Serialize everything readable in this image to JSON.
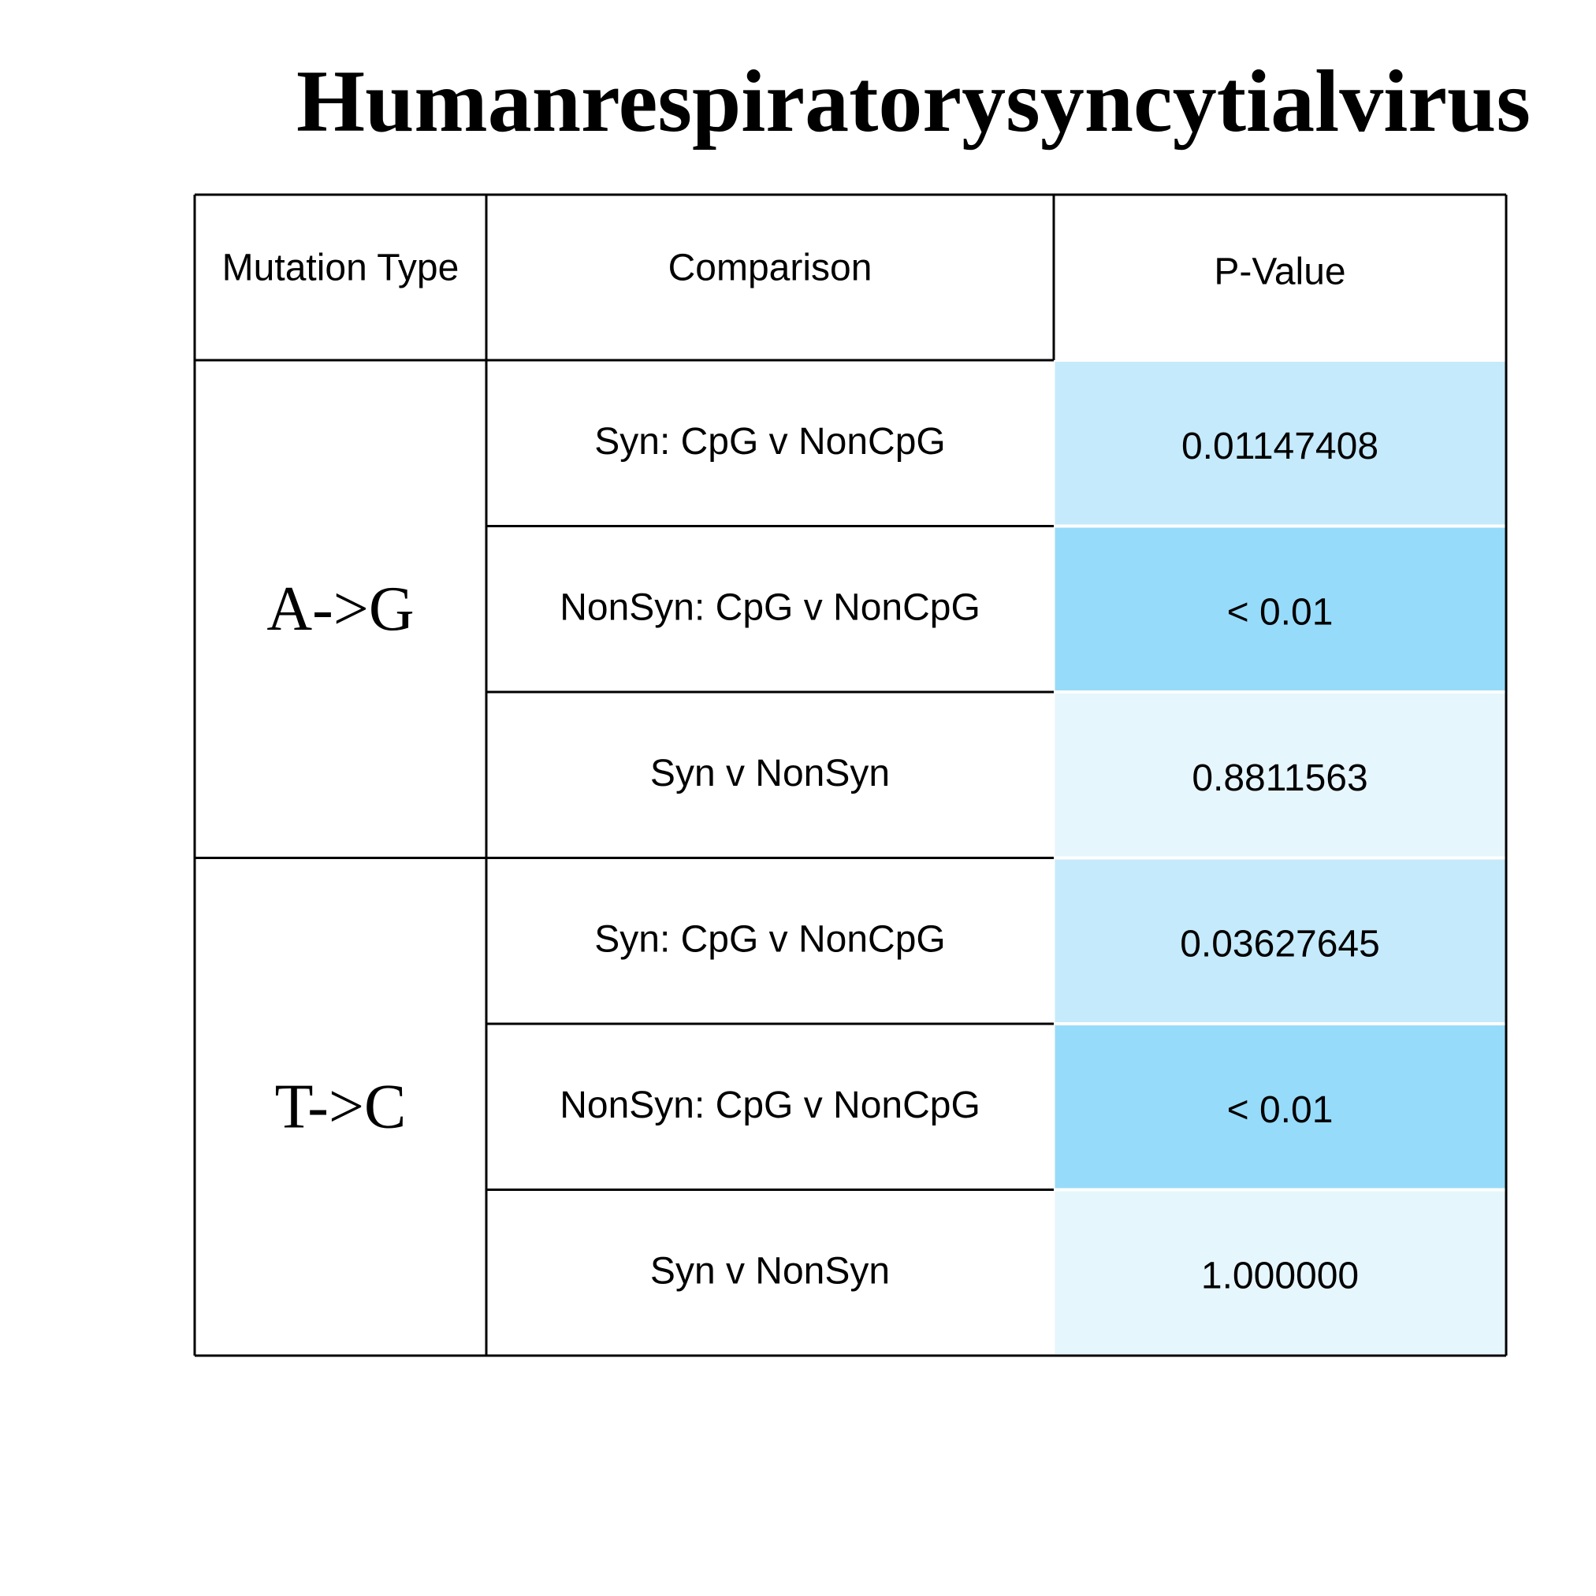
{
  "chart_data": {
    "type": "table",
    "title": "Humanrespiratorysyncytialvirus",
    "columns": [
      "Mutation Type",
      "Comparison",
      "P-Value"
    ],
    "groups": [
      {
        "mutation_type": "A->G",
        "rows": [
          {
            "comparison": "Syn: CpG v NonCpG",
            "p_value": "0.01147408",
            "fill": "#c5eafb"
          },
          {
            "comparison": "NonSyn: CpG v NonCpG",
            "p_value": "< 0.01",
            "fill": "#97dbfa"
          },
          {
            "comparison": "Syn v NonSyn",
            "p_value": "0.8811563",
            "fill": "#e6f6fd"
          }
        ]
      },
      {
        "mutation_type": "T->C",
        "rows": [
          {
            "comparison": "Syn: CpG v NonCpG",
            "p_value": "0.03627645",
            "fill": "#c5eafb"
          },
          {
            "comparison": "NonSyn: CpG v NonCpG",
            "p_value": "< 0.01",
            "fill": "#97dbfa"
          },
          {
            "comparison": "Syn v NonSyn",
            "p_value": "1.000000",
            "fill": "#e6f6fd"
          }
        ]
      }
    ]
  }
}
